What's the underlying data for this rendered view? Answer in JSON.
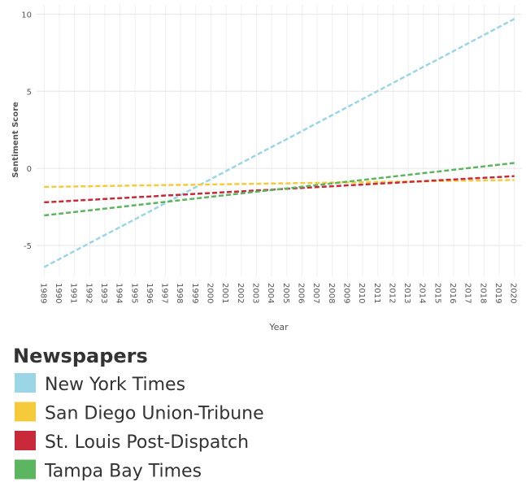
{
  "chart_data": {
    "type": "line",
    "x_label": "Year",
    "y_label": "Sentiment Score",
    "legend_title": "Newspapers",
    "categories": [
      "1989",
      "1990",
      "1991",
      "1992",
      "1993",
      "1994",
      "1995",
      "1996",
      "1997",
      "1998",
      "1999",
      "2000",
      "2001",
      "2002",
      "2003",
      "2004",
      "2005",
      "2006",
      "2007",
      "2008",
      "2009",
      "2010",
      "2011",
      "2012",
      "2013",
      "2014",
      "2015",
      "2016",
      "2017",
      "2018",
      "2019",
      "2020"
    ],
    "ylim": [
      -7,
      10.6
    ],
    "yticks": [
      -5,
      0,
      5,
      10
    ],
    "grid": true,
    "dashed": true,
    "series": [
      {
        "name": "New York Times",
        "color": "#9bd6e6",
        "values": [
          -6.4,
          -5.88,
          -5.36,
          -4.84,
          -4.32,
          -3.81,
          -3.29,
          -2.77,
          -2.25,
          -1.73,
          -1.21,
          -0.69,
          -0.17,
          0.35,
          0.87,
          1.39,
          1.9,
          2.42,
          2.94,
          3.46,
          3.98,
          4.5,
          5.02,
          5.54,
          6.06,
          6.58,
          7.09,
          7.61,
          8.13,
          8.65,
          9.17,
          9.69
        ]
      },
      {
        "name": "San Diego Union-Tribune",
        "color": "#f5cb3c",
        "values": [
          -1.2,
          -1.19,
          -1.17,
          -1.16,
          -1.14,
          -1.13,
          -1.11,
          -1.1,
          -1.08,
          -1.07,
          -1.06,
          -1.04,
          -1.03,
          -1.01,
          -1.0,
          -0.98,
          -0.97,
          -0.95,
          -0.94,
          -0.92,
          -0.91,
          -0.9,
          -0.88,
          -0.87,
          -0.85,
          -0.84,
          -0.82,
          -0.81,
          -0.79,
          -0.78,
          -0.77,
          -0.75
        ]
      },
      {
        "name": "St. Louis Post-Dispatch",
        "color": "#c92a3a",
        "values": [
          -2.2,
          -2.15,
          -2.09,
          -2.04,
          -1.98,
          -1.93,
          -1.87,
          -1.82,
          -1.76,
          -1.71,
          -1.65,
          -1.6,
          -1.54,
          -1.49,
          -1.43,
          -1.38,
          -1.32,
          -1.27,
          -1.21,
          -1.16,
          -1.1,
          -1.05,
          -0.99,
          -0.94,
          -0.88,
          -0.83,
          -0.77,
          -0.72,
          -0.66,
          -0.61,
          -0.56,
          -0.5
        ]
      },
      {
        "name": "Tampa Bay Times",
        "color": "#5cb55f",
        "values": [
          -3.05,
          -2.94,
          -2.83,
          -2.72,
          -2.61,
          -2.5,
          -2.39,
          -2.28,
          -2.17,
          -2.06,
          -1.95,
          -1.84,
          -1.73,
          -1.62,
          -1.51,
          -1.4,
          -1.3,
          -1.19,
          -1.08,
          -0.97,
          -0.86,
          -0.75,
          -0.64,
          -0.53,
          -0.42,
          -0.31,
          -0.2,
          -0.09,
          0.02,
          0.13,
          0.24,
          0.35
        ]
      }
    ]
  }
}
